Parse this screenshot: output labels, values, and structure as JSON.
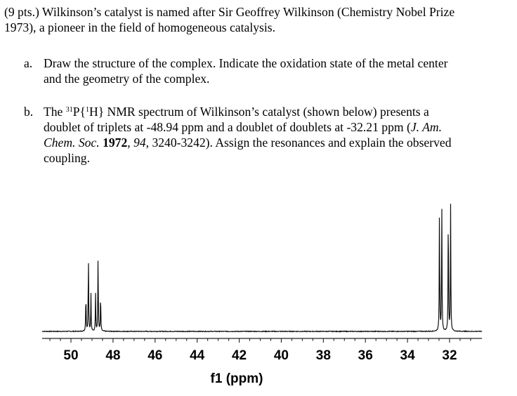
{
  "question": {
    "intro_line1": "(9 pts.) Wilkinson’s catalyst is named after Sir Geoffrey Wilkinson (Chemistry Nobel Prize",
    "intro_line2": "1973), a pioneer in the field of homogeneous catalysis.",
    "part_a": {
      "marker": "a.",
      "line1": "Draw the structure of the complex. Indicate the oxidation state of the metal center",
      "line2": "and the geometry of the complex."
    },
    "part_b": {
      "marker": "b.",
      "line1_pre": "The ",
      "sup31": "31",
      "line1_P": "P{",
      "sup1": "1",
      "line1_post": "H} NMR spectrum of Wilkinson’s catalyst (shown below) presents a",
      "line2_pre": "doublet of triplets at -48.94 ppm and a doublet of doublets at -32.21 ppm (",
      "journal1": "J. Am.",
      "journal2": "Chem. Soc.",
      "year": "1972",
      "sep1": ", ",
      "volume": "94",
      "pages": ", 3240-3242). Assign the resonances and explain the observed",
      "line4": "coupling."
    }
  },
  "chart_data": {
    "type": "line",
    "title": "",
    "xlabel": "f1 (ppm)",
    "ylabel": "",
    "x_reversed": true,
    "xlim": [
      52,
      30.5
    ],
    "xticks": [
      50,
      48,
      46,
      44,
      42,
      40,
      38,
      36,
      34,
      32
    ],
    "tick_labels": [
      "50",
      "48",
      "46",
      "44",
      "42",
      "40",
      "38",
      "36",
      "34",
      "32"
    ],
    "peaks_ppm": [
      49.29,
      49.17,
      49.05,
      48.83,
      48.71,
      48.59,
      32.48,
      32.37,
      32.06,
      31.95
    ],
    "peak_heights": [
      0.3,
      0.62,
      0.3,
      0.3,
      0.62,
      0.3,
      1.0,
      1.0,
      1.0,
      1.0
    ],
    "grid": false,
    "colors": {
      "trace": "#111111",
      "axis": "#222222"
    }
  }
}
